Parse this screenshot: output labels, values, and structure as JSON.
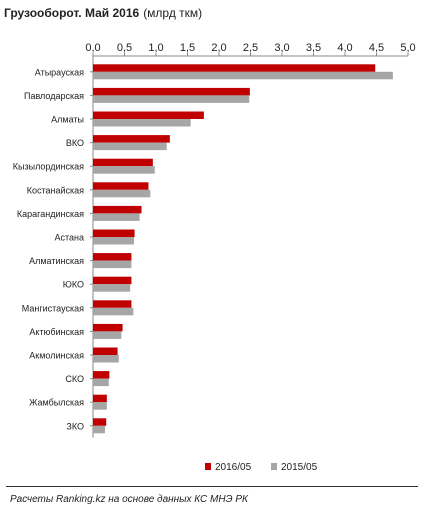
{
  "title": "Грузооборот. Май 2016",
  "unit": "(млрд ткм)",
  "footer": "Расчеты Ranking.kz на основе данных КС МНЭ РК",
  "chart_data": {
    "type": "bar",
    "orientation": "horizontal",
    "title": "Грузооборот. Май 2016",
    "unit": "(млрд ткм)",
    "xlim": [
      0,
      5.0
    ],
    "ticks": [
      "0,0",
      "0,5",
      "1,0",
      "1,5",
      "2,0",
      "2,5",
      "3,0",
      "3,5",
      "4,0",
      "4,5",
      "5,0"
    ],
    "tick_values": [
      0,
      0.5,
      1.0,
      1.5,
      2.0,
      2.5,
      3.0,
      3.5,
      4.0,
      4.5,
      5.0
    ],
    "axis_position": "top",
    "grid": false,
    "legend_position": "bottom",
    "categories": [
      "Атырауская",
      "Павлодарская",
      "Алматы",
      "ВКО",
      "Кызылординская",
      "Костанайская",
      "Карагандинская",
      "Астана",
      "Алматинская",
      "ЮКО",
      "Мангистауская",
      "Актюбинская",
      "Акмолинская",
      "СКО",
      "Жамбылская",
      "ЗКО"
    ],
    "series": [
      {
        "name": "2016/05",
        "color": "#c00000",
        "values": [
          4.48,
          2.49,
          1.76,
          1.22,
          0.95,
          0.88,
          0.77,
          0.66,
          0.61,
          0.61,
          0.61,
          0.47,
          0.39,
          0.26,
          0.22,
          0.21
        ]
      },
      {
        "name": "2015/05",
        "color": "#a6a6a6",
        "values": [
          4.76,
          2.48,
          1.55,
          1.17,
          0.98,
          0.91,
          0.74,
          0.65,
          0.61,
          0.59,
          0.64,
          0.45,
          0.41,
          0.25,
          0.22,
          0.19
        ]
      }
    ]
  }
}
